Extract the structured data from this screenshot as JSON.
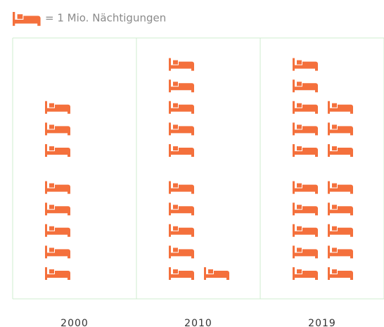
{
  "chart_data": {
    "type": "pictogram",
    "legend_label": "= 1 Mio. Nächtigungen",
    "categories": [
      "2000",
      "2010",
      "2019"
    ],
    "values": [
      8,
      11,
      18
    ],
    "color": "#f4703c"
  }
}
